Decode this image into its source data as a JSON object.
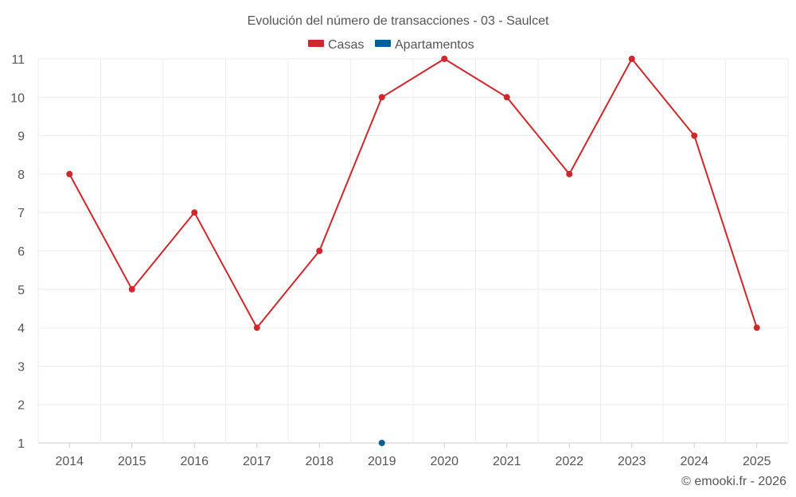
{
  "chart_data": {
    "type": "line",
    "title": "Evolución del número de transacciones - 03 - Saulcet",
    "categories": [
      "2014",
      "2015",
      "2016",
      "2017",
      "2018",
      "2019",
      "2020",
      "2021",
      "2022",
      "2023",
      "2024",
      "2025"
    ],
    "series": [
      {
        "name": "Casas",
        "color": "#d0272b",
        "values": [
          8,
          5,
          7,
          4,
          6,
          10,
          11,
          10,
          8,
          11,
          9,
          4
        ]
      },
      {
        "name": "Apartamentos",
        "color": "#005f96",
        "values": [
          null,
          null,
          null,
          null,
          null,
          1,
          null,
          null,
          null,
          null,
          null,
          null
        ]
      }
    ],
    "ylim": [
      1,
      11
    ],
    "yticks": [
      "1",
      "2",
      "3",
      "4",
      "5",
      "6",
      "7",
      "8",
      "9",
      "10",
      "11"
    ],
    "grid": true,
    "legend_position": "top-center"
  },
  "credit": "© emooki.fr - 2026"
}
